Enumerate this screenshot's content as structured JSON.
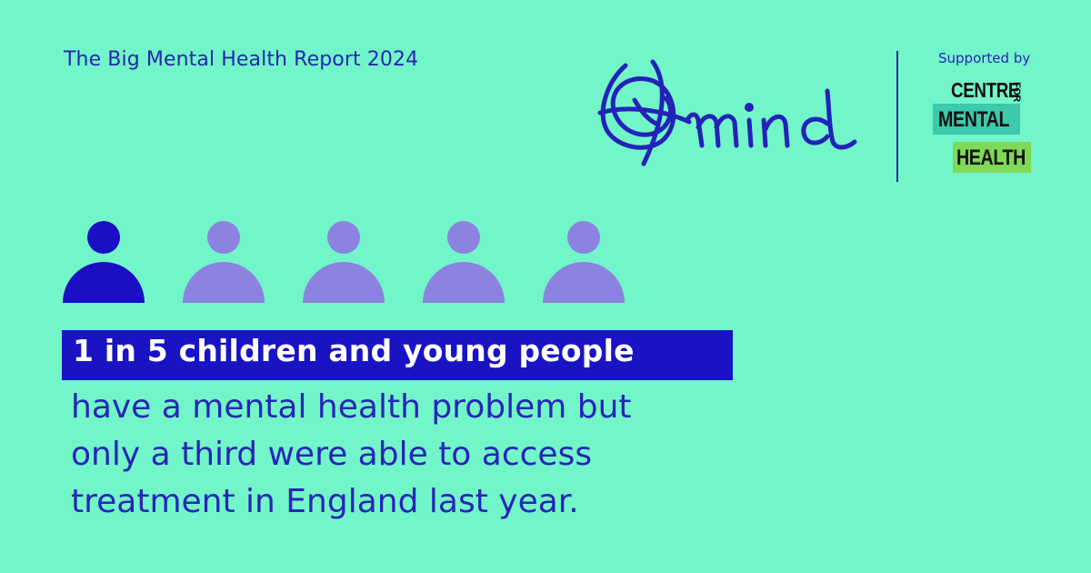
{
  "header": {
    "report_title": "The Big Mental Health Report 2024",
    "logo_text": "mind",
    "supported_by": "Supported by",
    "partner": {
      "line1": "CENTRE",
      "line1_small": "FOR",
      "line2": "MENTAL",
      "line3": "HEALTH"
    }
  },
  "icons": {
    "highlighted_count": 1,
    "total_count": 5,
    "colors": {
      "highlighted": "#1a0fc2",
      "default": "#8c82e0"
    }
  },
  "statement": {
    "highlight": "1 in 5 children and young people",
    "lines": [
      "have a mental health problem but",
      "only a third were able to access",
      "treatment in England last year."
    ]
  },
  "colors": {
    "background": "#72f5c8",
    "accent": "#1a13c4",
    "text": "#2626b8"
  }
}
